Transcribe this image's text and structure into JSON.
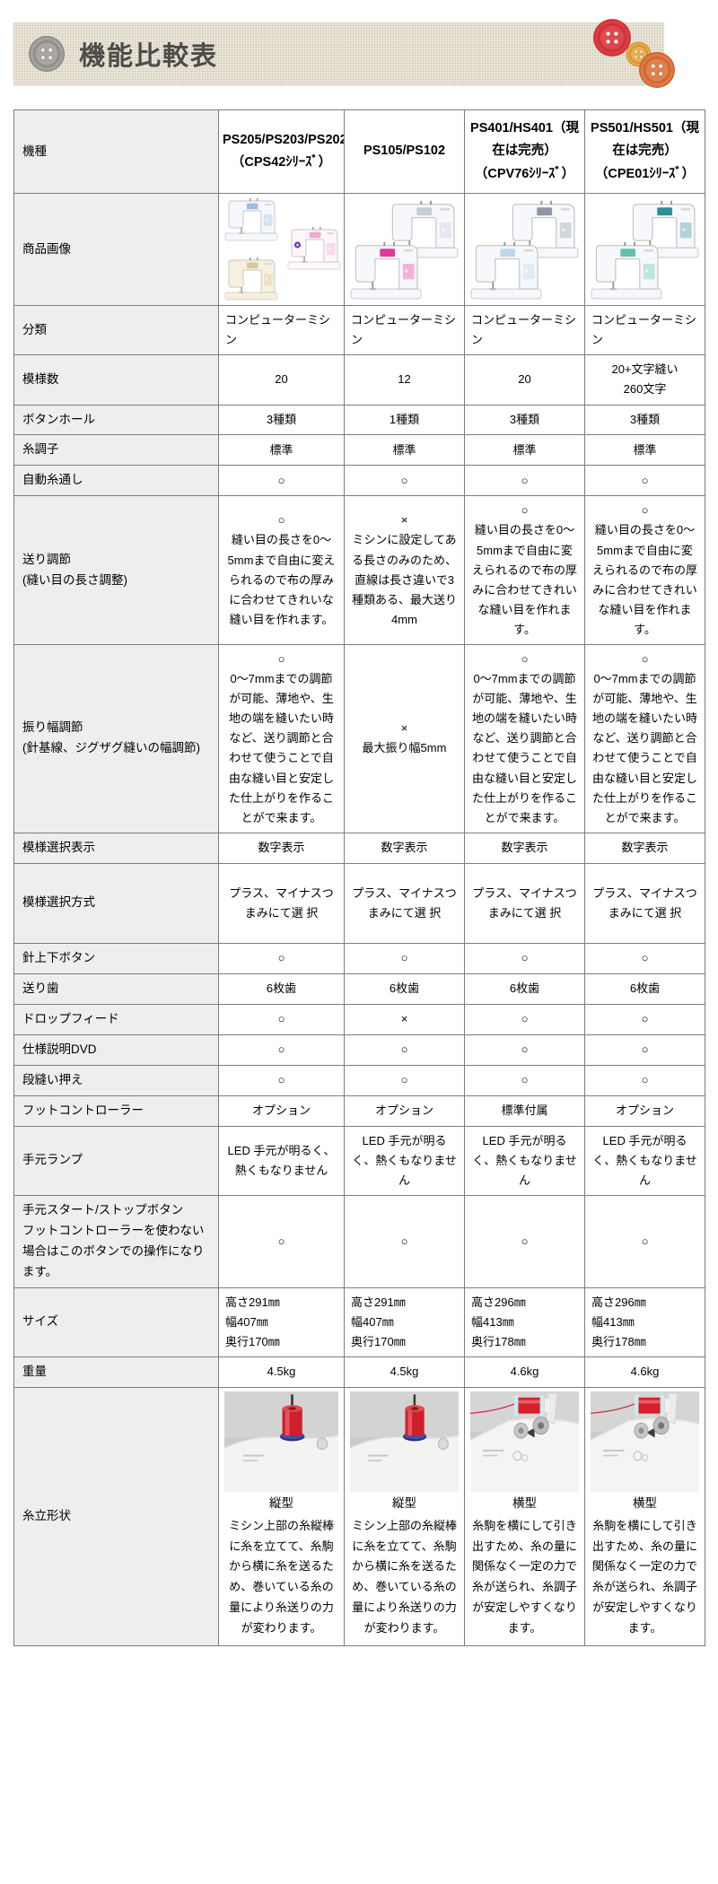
{
  "banner": {
    "title": "機能比較表",
    "colors": {
      "bg": "#ebe7da",
      "text": "#4d4c49",
      "icon_gray": "#a3a19d"
    },
    "deco_buttons": [
      {
        "name": "red-button",
        "color": "#e23940",
        "size": 44
      },
      {
        "name": "amber-button",
        "color": "#eda93e",
        "size": 29
      },
      {
        "name": "orange-button",
        "color": "#e3763d",
        "size": 42
      }
    ]
  },
  "table": {
    "colors": {
      "border": "#7d7d7d",
      "label_bg": "#eeeeee",
      "cell_bg": "#ffffff"
    },
    "header": {
      "label": "機種",
      "models": [
        "PS205/PS203/PS202（CPS42ｼﾘｰｽﾞ）",
        "PS105/PS102",
        "PS401/HS401（現在は完売）（CPV76ｼﾘｰｽﾞ）",
        "PS501/HS501（現在は完売）（CPE01ｼﾘｰｽﾞ）"
      ]
    },
    "rows": [
      {
        "label": "商品画像",
        "type": "machines",
        "cells": [
          {
            "machines": [
              {
                "accent": "#9fbce6",
                "body": "#f5f7fb"
              },
              {
                "accent": "#efa9cd",
                "body": "#fdf6fa",
                "spool": "#7b3fa0"
              },
              {
                "accent": "#d4c89e",
                "body": "#f6f0de"
              }
            ]
          },
          {
            "machines": [
              {
                "accent": "#c7ccd6",
                "body": "#f6f8fb"
              },
              {
                "accent": "#e23a96",
                "body": "#f6f8fb"
              }
            ]
          },
          {
            "machines": [
              {
                "accent": "#8f95a2",
                "body": "#f6f8fb"
              },
              {
                "accent": "#b9d9ea",
                "body": "#f6f8fb"
              }
            ]
          },
          {
            "machines": [
              {
                "accent": "#2f8f96",
                "body": "#f6f8fb"
              },
              {
                "accent": "#62bfad",
                "body": "#f6f8fb"
              }
            ]
          }
        ]
      },
      {
        "label": "分類",
        "align": "left",
        "cells": [
          "コンピューターミシン",
          "コンピューターミシン",
          "コンピューターミシン",
          "コンピューターミシン"
        ]
      },
      {
        "label": "模様数",
        "cells": [
          "20",
          "12",
          "20",
          "20+文字縫い\n260文字"
        ]
      },
      {
        "label": "ボタンホール",
        "cells": [
          "3種類",
          "1種類",
          "3種類",
          "3種類"
        ]
      },
      {
        "label": "糸調子",
        "cells": [
          "標準",
          "標準",
          "標準",
          "標準"
        ]
      },
      {
        "label": "自動糸通し",
        "cells": [
          "○",
          "○",
          "○",
          "○"
        ]
      },
      {
        "label": "送り調節\n(縫い目の長さ調整)",
        "cells": [
          "○\n縫い目の長さを0〜5mmまで自由に変えられるので布の厚みに合わせてきれいな縫い目を作れます。",
          "×\nミシンに設定してある長さのみのため、直線は長さ違いで3種類ある、最大送り4mm",
          "○\n縫い目の長さを0〜5mmまで自由に変えられるので布の厚みに合わせてきれいな縫い目を作れます。",
          "○\n縫い目の長さを0〜5mmまで自由に変えられるので布の厚みに合わせてきれいな縫い目を作れます。"
        ]
      },
      {
        "label": "振り幅調節\n(針基線、ジグザグ縫いの幅調節)",
        "cells": [
          "○\n0〜7mmまでの調節が可能、薄地や、生地の端を縫いたい時など、送り調節と合わせて使うことで自由な縫い目と安定した仕上がりを作ることがで来ます。",
          "×\n最大振り幅5mm",
          "○\n0〜7mmまでの調節が可能、薄地や、生地の端を縫いたい時など、送り調節と合わせて使うことで自由な縫い目と安定した仕上がりを作ることがで来ます。",
          "○\n0〜7mmまでの調節が可能、薄地や、生地の端を縫いたい時など、送り調節と合わせて使うことで自由な縫い目と安定した仕上がりを作ることがで来ます。"
        ]
      },
      {
        "label": "模様選択表示",
        "cells": [
          "数字表示",
          "数字表示",
          "数字表示",
          "数字表示"
        ]
      },
      {
        "label": "模様選択方式",
        "tall": true,
        "cells": [
          "プラス、マイナスつまみにて選 択",
          "プラス、マイナスつまみにて選 択",
          "プラス、マイナスつまみにて選 択",
          "プラス、マイナスつまみにて選 択"
        ]
      },
      {
        "label": "針上下ボタン",
        "cells": [
          "○",
          "○",
          "○",
          "○"
        ]
      },
      {
        "label": "送り歯",
        "cells": [
          "6枚歯",
          "6枚歯",
          "6枚歯",
          "6枚歯"
        ]
      },
      {
        "label": "ドロップフィード",
        "cells": [
          "○",
          "×",
          "○",
          "○"
        ]
      },
      {
        "label": "仕様説明DVD",
        "cells": [
          "○",
          "○",
          "○",
          "○"
        ]
      },
      {
        "label": "段縫い押え",
        "cells": [
          "○",
          "○",
          "○",
          "○"
        ]
      },
      {
        "label": "フットコントローラー",
        "cells": [
          "オプション",
          "オプション",
          "標準付属",
          "オプション"
        ]
      },
      {
        "label": "手元ランプ",
        "cells": [
          "LED 手元が明るく、熱くもなりません",
          "LED 手元が明るく、熱くもなりません",
          "LED 手元が明るく、熱くもなりません",
          "LED 手元が明るく、熱くもなりません"
        ]
      },
      {
        "label": "手元スタート/ストップボタン\nフットコントローラーを使わない場合はこのボタンでの操作になります。",
        "cells": [
          "○",
          "○",
          "○",
          "○"
        ]
      },
      {
        "label": "サイズ",
        "align": "left",
        "cells": [
          "高さ291㎜\n幅407㎜\n奥行170㎜",
          "高さ291㎜\n幅407㎜\n奥行170㎜",
          "高さ296㎜\n幅413㎜\n奥行178㎜",
          "高さ296㎜\n幅413㎜\n奥行178㎜"
        ]
      },
      {
        "label": "重量",
        "cells": [
          "4.5kg",
          "4.5kg",
          "4.6kg",
          "4.6kg"
        ]
      },
      {
        "label": "糸立形状",
        "type": "spool",
        "cells": [
          {
            "image": "vertical-spool",
            "title": "縦型",
            "text": "ミシン上部の糸縦棒に糸を立てて、糸駒から横に糸を送るため、巻いている糸の量により糸送りの力が変わります。"
          },
          {
            "image": "vertical-spool",
            "title": "縦型",
            "text": "ミシン上部の糸縦棒に糸を立てて、糸駒から横に糸を送るため、巻いている糸の量により糸送りの力が変わります。"
          },
          {
            "image": "horizontal-spool",
            "title": "横型",
            "text": "糸駒を横にして引き出すため、糸の量に関係なく一定の力で糸が送られ、糸調子が安定しやすくなります。"
          },
          {
            "image": "horizontal-spool",
            "title": "横型",
            "text": "糸駒を横にして引き出すため、糸の量に関係なく一定の力で糸が送られ、糸調子が安定しやすくなります。"
          }
        ]
      }
    ]
  }
}
